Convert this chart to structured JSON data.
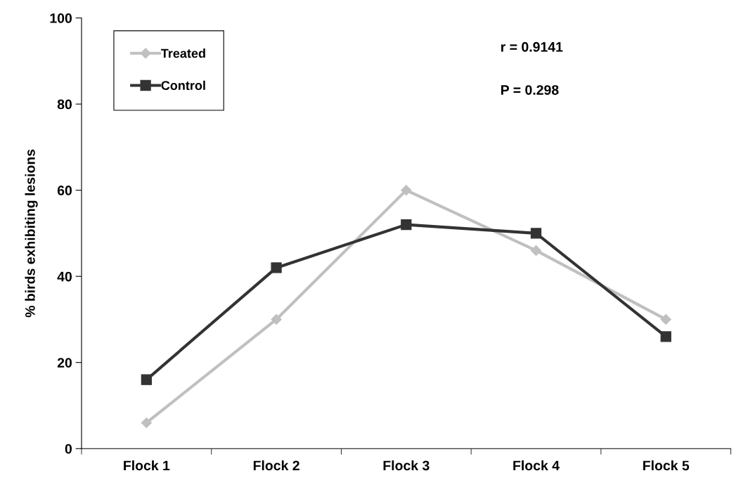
{
  "chart_data": {
    "type": "line",
    "ylabel": "% birds exhibiting lesions",
    "categories": [
      "Flock 1",
      "Flock 2",
      "Flock 3",
      "Flock 4",
      "Flock 5"
    ],
    "series": [
      {
        "name": "Treated",
        "color": "#c0c0c0",
        "marker": "diamond",
        "values": [
          6,
          30,
          60,
          46,
          30
        ]
      },
      {
        "name": "Control",
        "color": "#333333",
        "marker": "square",
        "values": [
          16,
          42,
          52,
          50,
          26
        ]
      }
    ],
    "ylim": [
      0,
      100
    ],
    "yticks": [
      0,
      20,
      40,
      60,
      80,
      100
    ],
    "annotations": [
      "r = 0.9141",
      "P = 0.298"
    ],
    "grid": false,
    "legend": "top left",
    "line_style": "solid"
  }
}
